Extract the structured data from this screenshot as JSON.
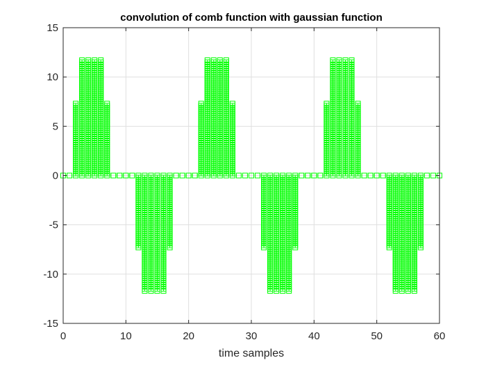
{
  "chart_data": {
    "type": "stem",
    "title": "convolution of comb function with gaussian function",
    "xlabel": "time samples",
    "ylabel": "",
    "xlim": [
      0,
      60
    ],
    "ylim": [
      -15,
      15
    ],
    "xticks": [
      0,
      10,
      20,
      30,
      40,
      50,
      60
    ],
    "yticks": [
      -15,
      -10,
      -5,
      0,
      5,
      10,
      15
    ],
    "grid": true,
    "marker": "square",
    "color": "#00ff00",
    "series": [
      {
        "x": [
          0,
          1,
          2,
          3,
          4,
          5,
          6,
          7,
          8,
          9,
          10,
          11,
          12,
          13,
          14,
          15,
          16,
          17,
          18,
          19,
          20,
          21,
          22,
          23,
          24,
          25,
          26,
          27,
          28,
          29,
          30,
          31,
          32,
          33,
          34,
          35,
          36,
          37,
          38,
          39,
          40,
          41,
          42,
          43,
          44,
          45,
          46,
          47,
          48,
          49,
          50,
          51,
          52,
          53,
          54,
          55,
          56,
          57,
          58,
          59,
          60
        ],
        "values": [
          0,
          0,
          7.3,
          11.7,
          11.7,
          11.7,
          11.7,
          7.3,
          0,
          0,
          0,
          0,
          -7.3,
          -11.7,
          -11.7,
          -11.7,
          -11.7,
          -7.3,
          0,
          0,
          0,
          0,
          7.3,
          11.7,
          11.7,
          11.7,
          11.7,
          7.3,
          0,
          0,
          0,
          0,
          -7.3,
          -11.7,
          -11.7,
          -11.7,
          -11.7,
          -7.3,
          0,
          0,
          0,
          0,
          7.3,
          11.7,
          11.7,
          11.7,
          11.7,
          7.3,
          0,
          0,
          0,
          0,
          -7.3,
          -11.7,
          -11.7,
          -11.7,
          -11.7,
          -7.3,
          0,
          0,
          0
        ]
      }
    ]
  }
}
